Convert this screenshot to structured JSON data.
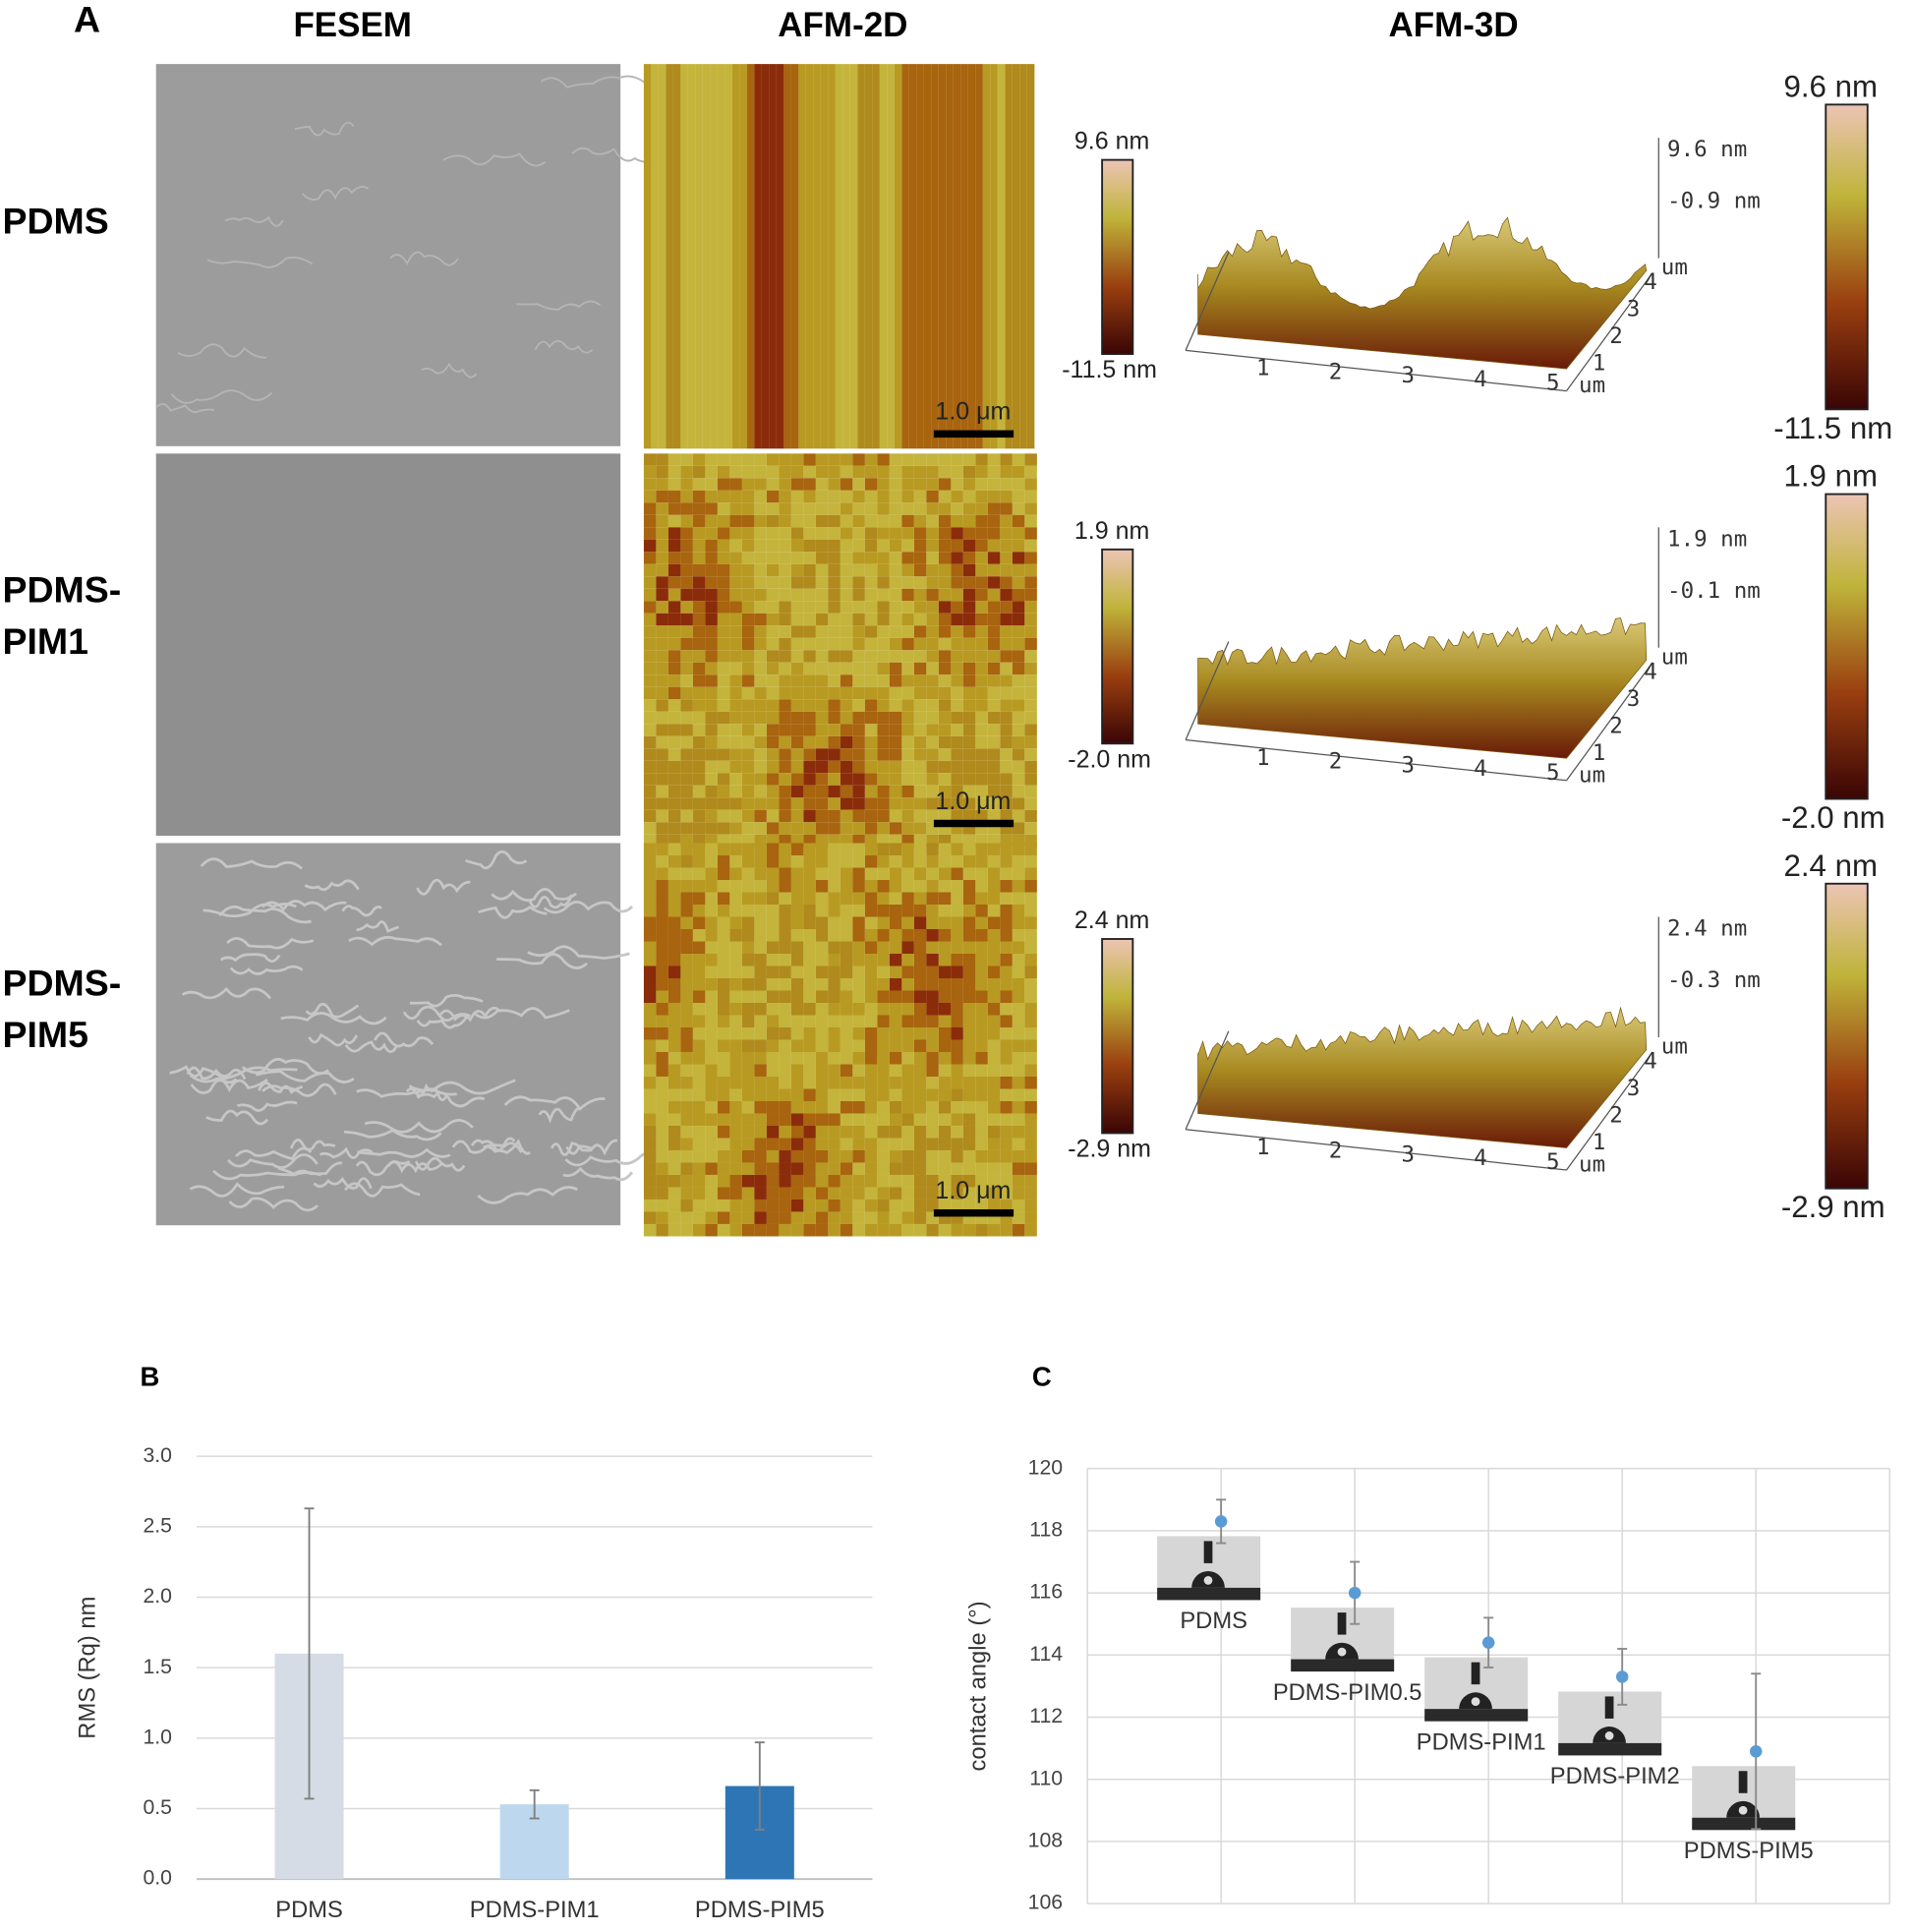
{
  "panel_a": {
    "letter": "A",
    "headers": [
      "FESEM",
      "AFM-2D",
      "AFM-3D"
    ],
    "axis_ticks_3d": [
      "1",
      "2",
      "3",
      "4",
      "5"
    ],
    "axis_unit_3d": "um",
    "rows": [
      {
        "label_lines": [
          "PDMS"
        ],
        "colorbar_2d": [
          "9.6 nm",
          "-11.5 nm"
        ],
        "axis_3d": [
          "9.6 nm",
          "-0.9 nm"
        ],
        "colorbar_3d": [
          "9.6 nm",
          "-11.5 nm"
        ],
        "scale_bar": "1.0 μm"
      },
      {
        "label_lines": [
          "PDMS-",
          "PIM1"
        ],
        "colorbar_2d": [
          "1.9 nm",
          "-2.0 nm"
        ],
        "axis_3d": [
          "1.9 nm",
          "-0.1 nm"
        ],
        "colorbar_3d": [
          "1.9 nm",
          "-2.0 nm"
        ],
        "scale_bar": "1.0 μm"
      },
      {
        "label_lines": [
          "PDMS-",
          "PIM5"
        ],
        "colorbar_2d": [
          "2.4 nm",
          "-2.9 nm"
        ],
        "axis_3d": [
          "2.4 nm",
          "-0.3 nm"
        ],
        "colorbar_3d": [
          "2.4 nm",
          "-2.9 nm"
        ],
        "scale_bar": "1.0 μm"
      }
    ]
  },
  "chart_data": [
    {
      "type": "bar",
      "panel": "B",
      "ylabel": "RMS (Rq) nm",
      "categories": [
        "PDMS",
        "PDMS-PIM1",
        "PDMS-PIM5"
      ],
      "values": [
        1.6,
        0.53,
        0.66
      ],
      "errors": [
        1.03,
        0.1,
        0.31
      ],
      "colors": [
        "#d6dce5",
        "#bdd7ee",
        "#2e75b6"
      ],
      "ylim": [
        0,
        3
      ],
      "yticks": [
        {
          "value": 0,
          "label": "0.0"
        },
        {
          "value": 0.5,
          "label": "0.5"
        },
        {
          "value": 1,
          "label": "1.0"
        },
        {
          "value": 1.5,
          "label": "1.5"
        },
        {
          "value": 2,
          "label": "2.0"
        },
        {
          "value": 2.5,
          "label": "2.5"
        },
        {
          "value": 3,
          "label": "3.0"
        }
      ],
      "grid": true
    },
    {
      "type": "scatter",
      "panel": "C",
      "ylabel": "contact angle (°)",
      "categories": [
        "PDMS",
        "PDMS-PIM0.5",
        "PDMS-PIM1",
        "PDMS-PIM2",
        "PDMS-PIM5"
      ],
      "values": [
        118.3,
        116.0,
        114.4,
        113.3,
        110.9
      ],
      "errors": [
        0.7,
        1.0,
        0.8,
        0.9,
        2.5
      ],
      "color": "#5b9bd5",
      "ylim": [
        106,
        120
      ],
      "yticks": [
        106,
        108,
        110,
        112,
        114,
        116,
        118,
        120
      ],
      "grid": true
    }
  ]
}
